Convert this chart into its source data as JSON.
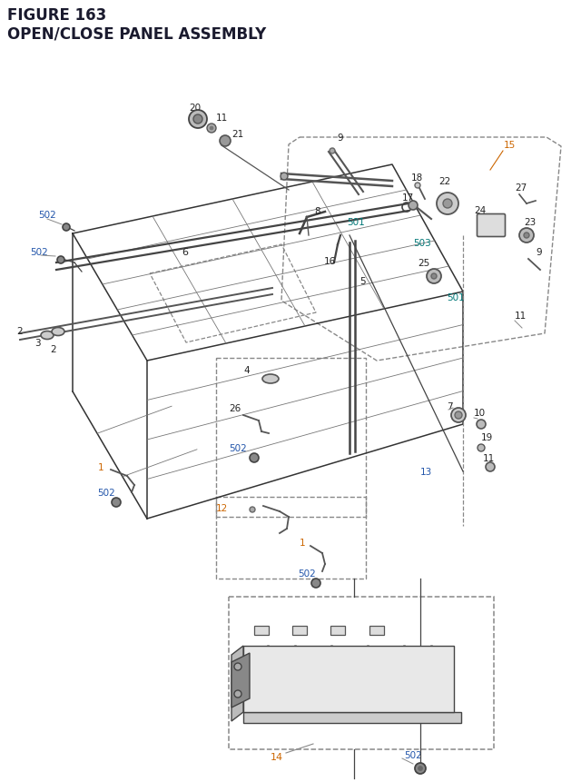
{
  "title_line1": "FIGURE 163",
  "title_line2": "OPEN/CLOSE PANEL ASSEMBLY",
  "bg_color": "#ffffff",
  "title_color": "#1a1a2e",
  "title_fontsize": 12,
  "lc": "#444444",
  "pc": "#555555",
  "bc": "#2255aa",
  "oc": "#cc6600",
  "tc": "#007777",
  "bk": "#222222",
  "dc": "#666666"
}
